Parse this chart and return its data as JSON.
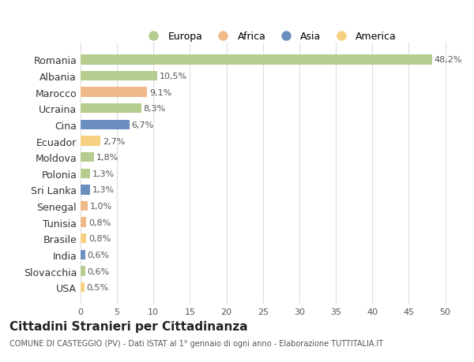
{
  "categories": [
    "Romania",
    "Albania",
    "Marocco",
    "Ucraina",
    "Cina",
    "Ecuador",
    "Moldova",
    "Polonia",
    "Sri Lanka",
    "Senegal",
    "Tunisia",
    "Brasile",
    "India",
    "Slovacchia",
    "USA"
  ],
  "values": [
    48.2,
    10.5,
    9.1,
    8.3,
    6.7,
    2.7,
    1.8,
    1.3,
    1.3,
    1.0,
    0.8,
    0.8,
    0.6,
    0.6,
    0.5
  ],
  "labels": [
    "48,2%",
    "10,5%",
    "9,1%",
    "8,3%",
    "6,7%",
    "2,7%",
    "1,8%",
    "1,3%",
    "1,3%",
    "1,0%",
    "0,8%",
    "0,8%",
    "0,6%",
    "0,6%",
    "0,5%"
  ],
  "colors": [
    "#b5cc8e",
    "#b5cc8e",
    "#f0b989",
    "#b5cc8e",
    "#6b90c0",
    "#f5d080",
    "#b5cc8e",
    "#b5cc8e",
    "#6b90c0",
    "#f0b989",
    "#f0b989",
    "#f5d080",
    "#6b90c0",
    "#b5cc8e",
    "#f5d080"
  ],
  "legend": [
    {
      "label": "Europa",
      "color": "#b5cc8e"
    },
    {
      "label": "Africa",
      "color": "#f0b989"
    },
    {
      "label": "Asia",
      "color": "#6b90c0"
    },
    {
      "label": "America",
      "color": "#f5d080"
    }
  ],
  "title": "Cittadini Stranieri per Cittadinanza",
  "subtitle": "COMUNE DI CASTEGGIO (PV) - Dati ISTAT al 1° gennaio di ogni anno - Elaborazione TUTTITALIA.IT",
  "xlim": [
    0,
    52
  ],
  "xticks": [
    0,
    5,
    10,
    15,
    20,
    25,
    30,
    35,
    40,
    45,
    50
  ],
  "background_color": "#ffffff",
  "grid_color": "#dddddd"
}
